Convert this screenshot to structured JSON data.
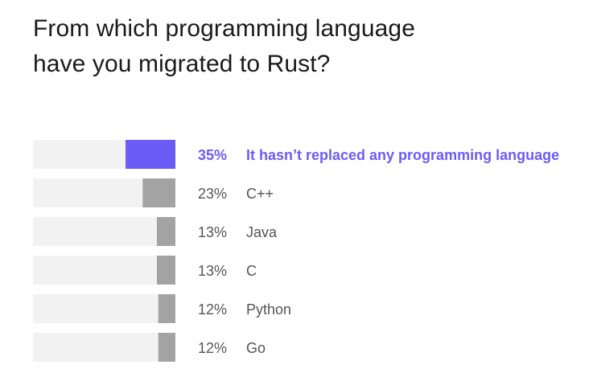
{
  "title_lines": [
    "From which programming language",
    "have you migrated to Rust?"
  ],
  "colors": {
    "track": "#f2f2f2",
    "bar": "#a3a3a3",
    "highlight": "#6c5cf7",
    "label": "#555555"
  },
  "chart_data": {
    "type": "bar",
    "orientation": "horizontal",
    "title": "From which programming language have you migrated to Rust?",
    "categories": [
      "It hasn’t replaced any programming language",
      "C++",
      "Java",
      "C",
      "Python",
      "Go"
    ],
    "values": [
      35,
      23,
      13,
      13,
      12,
      12
    ],
    "value_labels": [
      "35%",
      "23%",
      "13%",
      "13%",
      "12%",
      "12%"
    ],
    "unit": "%",
    "xlim": [
      0,
      100
    ],
    "highlight_index": 0,
    "grid": false,
    "legend": "none"
  }
}
